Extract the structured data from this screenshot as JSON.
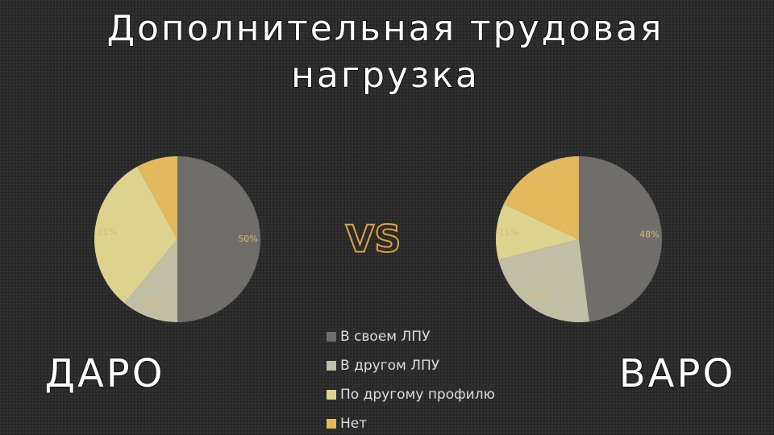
{
  "title_lines": [
    "Дополнительная трудовая",
    "нагрузка"
  ],
  "vs": "VS",
  "chart_data": [
    {
      "type": "pie",
      "label": "ДАРО",
      "categories": [
        "В своем ЛПУ",
        "В другом ЛПУ",
        "По другому профилю",
        "Нет"
      ],
      "values": [
        50,
        11,
        31,
        8
      ],
      "value_labels": [
        "50%",
        "11%",
        "31%",
        "8%"
      ],
      "colors": [
        "#6f6e6b",
        "#c0bfa6",
        "#ddd38f",
        "#e2b95d"
      ]
    },
    {
      "type": "pie",
      "label": "ВАРО",
      "values": [
        48,
        23,
        11,
        18
      ],
      "value_labels": [
        "48%",
        "23%",
        "11%",
        "18%"
      ],
      "colors": [
        "#6f6e6b",
        "#c0bfa6",
        "#ddd38f",
        "#e2b95d"
      ]
    }
  ]
}
